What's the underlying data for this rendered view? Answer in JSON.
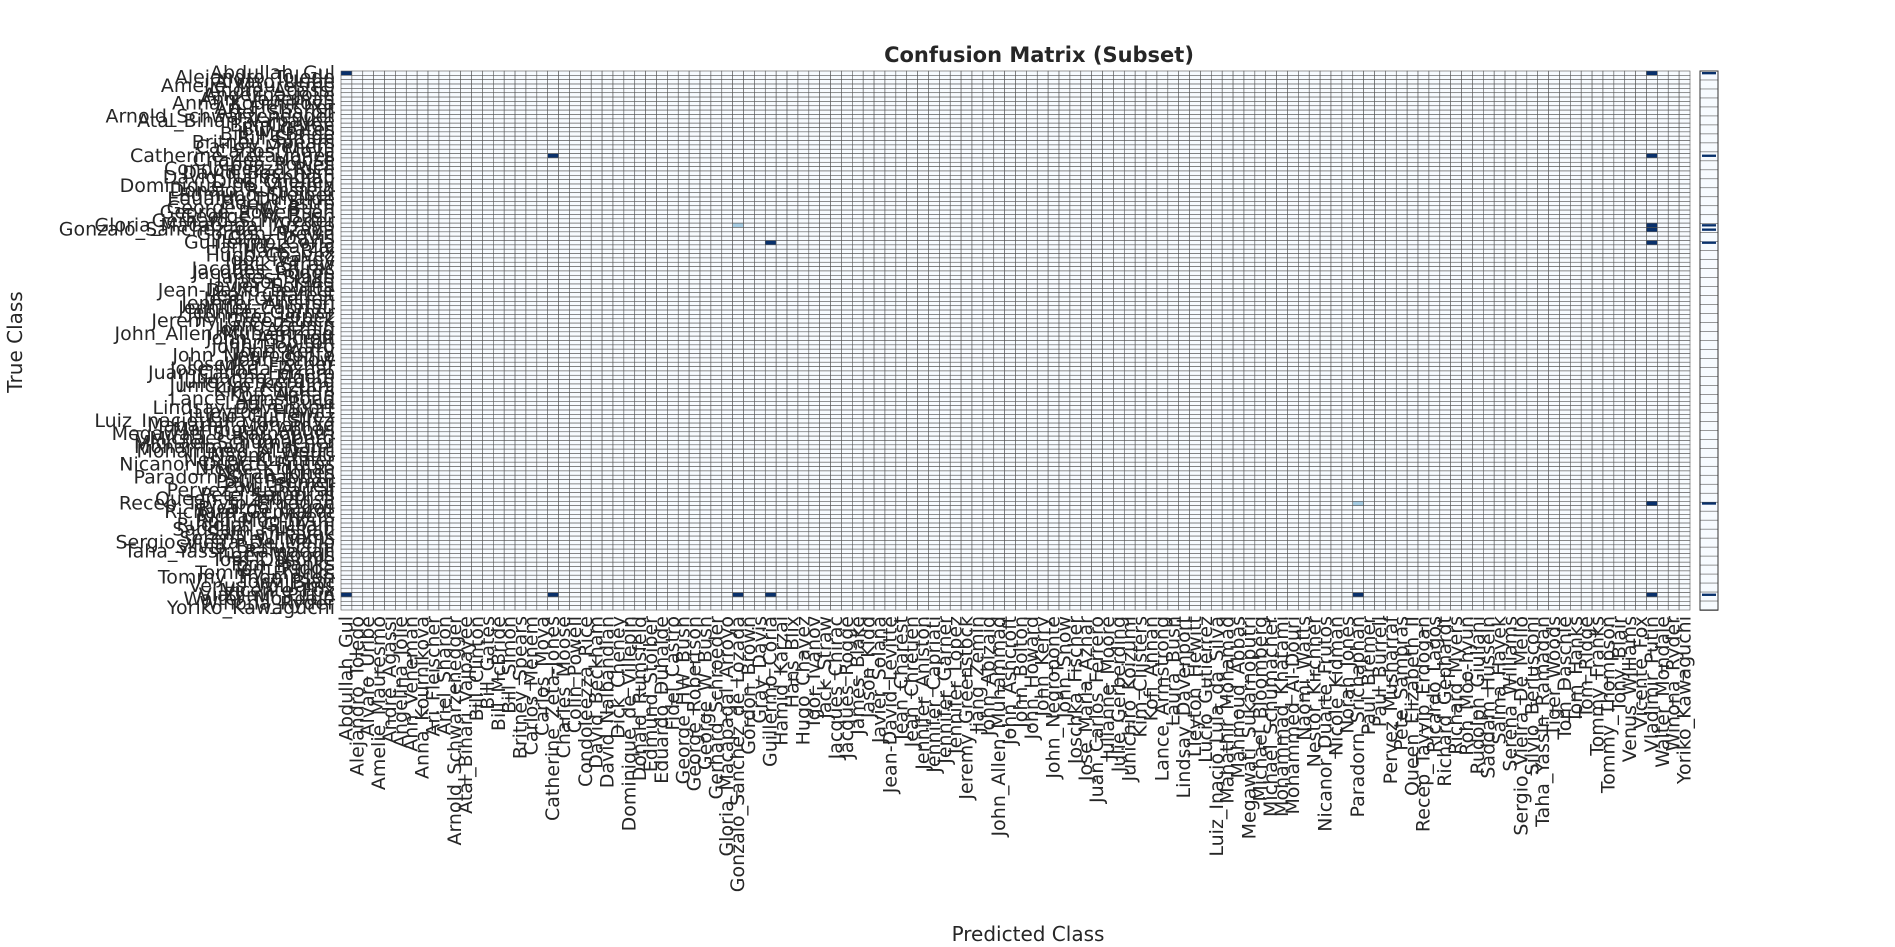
{
  "chart_data": {
    "type": "heatmap",
    "title": "Confusion Matrix (Subset)",
    "xlabel": "Predicted Class",
    "ylabel": "True Class",
    "colormap": "Blues",
    "grid": true,
    "colorbar": "right",
    "labels": [
      "Abdullah_Gul",
      "Alejandro_Toledo",
      "Alvaro_Uribe",
      "Amelie_Mauresmo",
      "Andre_Agassi",
      "Angelina_Jolie",
      "Ann_Veneman",
      "Anna_Kournikova",
      "Ari_Fleischer",
      "Ariel_Sharon",
      "Arnold_Schwarzenegger",
      "Atal_Bihari_Vajpayee",
      "Bill_Clinton",
      "Bill_Gates",
      "Bill_McBride",
      "Bill_Simon",
      "Britney_Spears",
      "Carlos_Menem",
      "Carlos_Moya",
      "Catherine_Zeta-Jones",
      "Charles_Moose",
      "Colin_Powell",
      "Condoleezza_Rice",
      "David_Beckham",
      "David_Nalbandian",
      "Dick_Cheney",
      "Dominique_de_Villepin",
      "Donald_Rumsfeld",
      "Edmund_Stoiber",
      "Eduardo_Duhalde",
      "Fidel_Castro",
      "George_HW_Bush",
      "George_Robertson",
      "George_W_Bush",
      "Gerhard_Schroeder",
      "Gloria_Macapagal_Arroyo",
      "Gonzalo_Sanchez_de_Lozada",
      "Gordon_Brown",
      "Gray_Davis",
      "Guillermo_Coria",
      "Hamid_Karzai",
      "Hans_Blix",
      "Hugo_Chavez",
      "Igor_Ivanov",
      "Jack_Straw",
      "Jacques_Chirac",
      "Jacques_Rogge",
      "James_Blake",
      "Jason_Kidd",
      "Javier_Solana",
      "Jean-David_Levitte",
      "Jean_Charest",
      "Jean_Chretien",
      "Jennifer_Aniston",
      "Jennifer_Capriati",
      "Jennifer_Garner",
      "Jennifer_Lopez",
      "Jeremy_Greenstock",
      "Jiang_Zemin",
      "John_Abizaid",
      "John_Allen_Muhammad",
      "John_Ashcroft",
      "John_Bolton",
      "John_Howard",
      "John_Kerry",
      "John_Negroponte",
      "John_Snow",
      "Joschka_Fischer",
      "Jose_Maria_Aznar",
      "Juan_Carlos_Ferrero",
      "Julianne_Moore",
      "Julie_Gerberding",
      "Junichiro_Koizumi",
      "Kim_Clijsters",
      "Kofi_Annan",
      "Lance_Armstrong",
      "Laura_Bush",
      "Lindsay_Davenport",
      "Lleyton_Hewitt",
      "Lucio_Gutierrez",
      "Luiz_Inacio_Lula_da_Silva",
      "Mahathir_Mohamad",
      "Mahmoud_Abbas",
      "Megawati_Sukarnoputri",
      "Michael_Bloomberg",
      "Michael_Schumacher",
      "Mohammad_Khatami",
      "Mohammed_Al-Douri",
      "Naomi_Watts",
      "Nestor_Kirchner",
      "Nicanor_Duarte_Frutos",
      "Nicole_Kidman",
      "Norah_Jones",
      "Paradorn_Srichaphan",
      "Paul_Bremer",
      "Paul_Burrell",
      "Pervez_Musharraf",
      "Pete_Sampras",
      "Queen_Elizabeth_II",
      "Recep_Tayyip_Erdogan",
      "Ricardo_Lagos",
      "Richard_Gephardt",
      "Richard_Myers",
      "Roh_Moo-hyun",
      "Rudolph_Giuliani",
      "Saddam_Hussein",
      "Salma_Hayek",
      "Serena_Williams",
      "Sergio_Vieira_De_Mello",
      "Silvio_Berlusconi",
      "Taha_Yassin_Ramadan",
      "Tiger_Woods",
      "Tom_Daschle",
      "Tom_Hanks",
      "Tom_Ridge",
      "Tommy_Franks",
      "Tommy_Thompson",
      "Tony_Blair",
      "Venus_Williams",
      "Vicente_Fox",
      "Vladimir_Putin",
      "Walter_Mondale",
      "Winona_Ryder",
      "Yoriko_Kawaguchi"
    ],
    "nonzero_cells": [
      {
        "true_index": 0,
        "pred_index": 0,
        "value": 1
      },
      {
        "true_index": 0,
        "pred_index": 120,
        "value": 1
      },
      {
        "true_index": 19,
        "pred_index": 19,
        "value": 1
      },
      {
        "true_index": 19,
        "pred_index": 120,
        "value": 1
      },
      {
        "true_index": 35,
        "pred_index": 36,
        "value": 0.35
      },
      {
        "true_index": 35,
        "pred_index": 120,
        "value": 1
      },
      {
        "true_index": 36,
        "pred_index": 120,
        "value": 1
      },
      {
        "true_index": 39,
        "pred_index": 39,
        "value": 1
      },
      {
        "true_index": 39,
        "pred_index": 120,
        "value": 1
      },
      {
        "true_index": 99,
        "pred_index": 93,
        "value": 0.35
      },
      {
        "true_index": 99,
        "pred_index": 120,
        "value": 1
      },
      {
        "true_index": 120,
        "pred_index": 0,
        "value": 1
      },
      {
        "true_index": 120,
        "pred_index": 19,
        "value": 1
      },
      {
        "true_index": 120,
        "pred_index": 36,
        "value": 1
      },
      {
        "true_index": 120,
        "pred_index": 39,
        "value": 1
      },
      {
        "true_index": 120,
        "pred_index": 93,
        "value": 1
      },
      {
        "true_index": 120,
        "pred_index": 120,
        "value": 1
      }
    ]
  }
}
